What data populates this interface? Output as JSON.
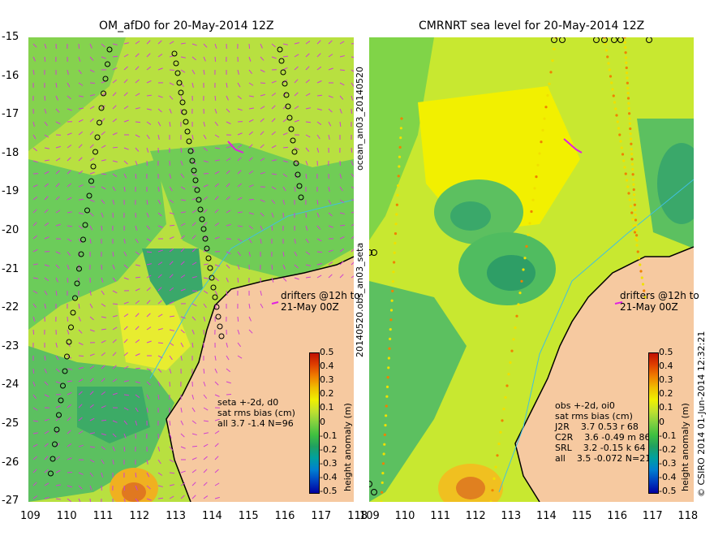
{
  "left_panel": {
    "title": "OM_afD0 for 20-May-2014 12Z",
    "drifters_label": [
      "drifters @12h to",
      "21-May 00Z"
    ],
    "stats": [
      "seta +-2d, d0",
      "sat rms bias (cm)",
      "all 3.7 -1.4 N=96"
    ]
  },
  "right_panel": {
    "title": "CMRNRT sea level  for 20-May-2014 12Z",
    "drifters_label": [
      "drifters @12h to",
      "21-May 00Z"
    ],
    "stats": [
      "obs +-2d, oi0",
      "sat rms bias (cm)",
      "J2R    3.7 0.53 r 68",
      "C2R    3.6 -0.49 m 86",
      "SRL    3.2 -0.15 k 64",
      "all    3.5 -0.072 N=21"
    ]
  },
  "y_ticks": [
    "-15",
    "-16",
    "-17",
    "-18",
    "-19",
    "-20",
    "-21",
    "-22",
    "-23",
    "-24",
    "-25",
    "-26",
    "-27"
  ],
  "x_ticks": [
    "109",
    "110",
    "111",
    "112",
    "113",
    "114",
    "115",
    "116",
    "117",
    "118"
  ],
  "colorbar": {
    "label": "height anomaly (m)",
    "ticks": [
      "0.5",
      "0.4",
      "0.3",
      "0.2",
      "0.1",
      "0",
      "-0.1",
      "-0.2",
      "-0.3",
      "-0.4",
      "-0.5"
    ],
    "colors": [
      "#0000a0",
      "#0040c0",
      "#0080d0",
      "#00a0a0",
      "#20a060",
      "#40c040",
      "#80d040",
      "#c0e030",
      "#f0f000",
      "#f0c000",
      "#f08000",
      "#e04000",
      "#c01000"
    ]
  },
  "side_text": {
    "vertical_left": "ocean_an03_20140520",
    "vertical_left2": "20140520.obs_an03_seta",
    "vertical_right": "© CSIRO 2014   01-Jun-2014 12:32:21"
  }
}
